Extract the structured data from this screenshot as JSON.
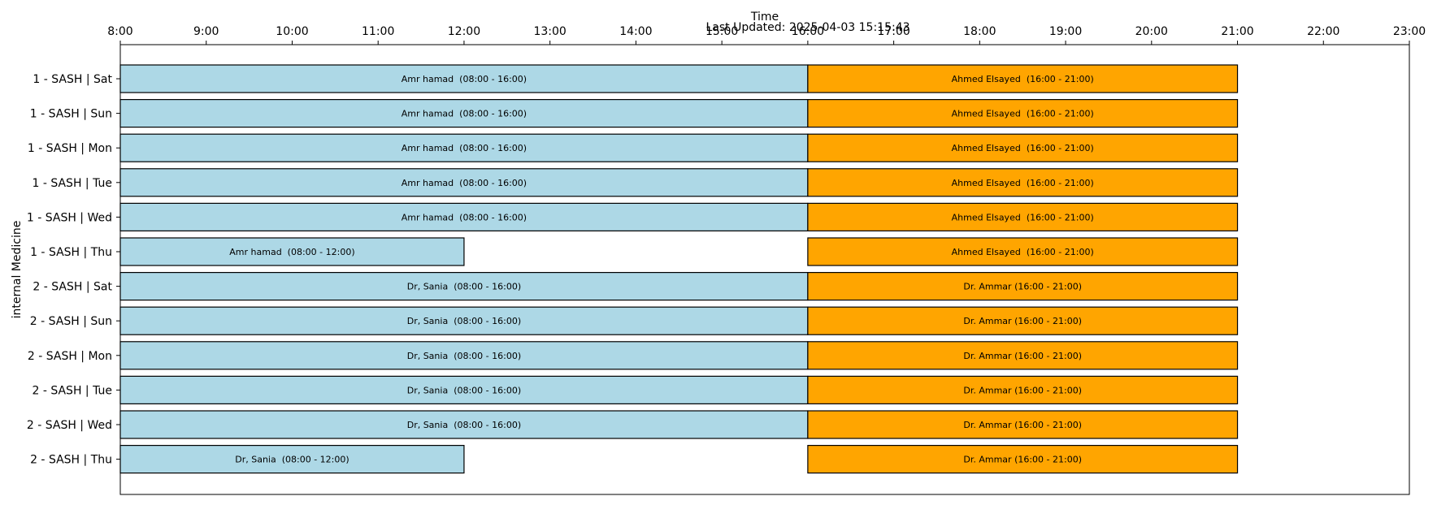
{
  "chart_data": {
    "type": "gantt",
    "title": "",
    "subtitle": "Last Updated: 2025-04-03 15:15:43",
    "xlabel": "Time",
    "ylabel": "internal Medicine",
    "x_axis_position": "top",
    "xlim": [
      8,
      23
    ],
    "x_ticks": [
      8,
      9,
      10,
      11,
      12,
      13,
      14,
      15,
      16,
      17,
      18,
      19,
      20,
      21,
      22,
      23
    ],
    "x_tick_labels": [
      "8:00",
      "9:00",
      "10:00",
      "11:00",
      "12:00",
      "13:00",
      "14:00",
      "15:00",
      "16:00",
      "17:00",
      "18:00",
      "19:00",
      "20:00",
      "21:00",
      "22:00",
      "23:00"
    ],
    "grid": false,
    "colors": {
      "morning": "#add8e6",
      "evening": "#ffa500",
      "edge": "#000000"
    },
    "rows": [
      "1 - SASH | Sat",
      "1 - SASH | Sun",
      "1 - SASH | Mon",
      "1 - SASH | Tue",
      "1 - SASH | Wed",
      "1 - SASH | Thu",
      "2 - SASH | Sat",
      "2 - SASH | Sun",
      "2 - SASH | Mon",
      "2 - SASH | Tue",
      "2 - SASH | Wed",
      "2 - SASH | Thu"
    ],
    "shifts": [
      {
        "row": 0,
        "start": 8,
        "end": 16,
        "kind": "morning",
        "label": "Amr hamad  (08:00 - 16:00)"
      },
      {
        "row": 0,
        "start": 16,
        "end": 21,
        "kind": "evening",
        "label": "Ahmed Elsayed  (16:00 - 21:00)"
      },
      {
        "row": 1,
        "start": 8,
        "end": 16,
        "kind": "morning",
        "label": "Amr hamad  (08:00 - 16:00)"
      },
      {
        "row": 1,
        "start": 16,
        "end": 21,
        "kind": "evening",
        "label": "Ahmed Elsayed  (16:00 - 21:00)"
      },
      {
        "row": 2,
        "start": 8,
        "end": 16,
        "kind": "morning",
        "label": "Amr hamad  (08:00 - 16:00)"
      },
      {
        "row": 2,
        "start": 16,
        "end": 21,
        "kind": "evening",
        "label": "Ahmed Elsayed  (16:00 - 21:00)"
      },
      {
        "row": 3,
        "start": 8,
        "end": 16,
        "kind": "morning",
        "label": "Amr hamad  (08:00 - 16:00)"
      },
      {
        "row": 3,
        "start": 16,
        "end": 21,
        "kind": "evening",
        "label": "Ahmed Elsayed  (16:00 - 21:00)"
      },
      {
        "row": 4,
        "start": 8,
        "end": 16,
        "kind": "morning",
        "label": "Amr hamad  (08:00 - 16:00)"
      },
      {
        "row": 4,
        "start": 16,
        "end": 21,
        "kind": "evening",
        "label": "Ahmed Elsayed  (16:00 - 21:00)"
      },
      {
        "row": 5,
        "start": 8,
        "end": 12,
        "kind": "morning",
        "label": "Amr hamad  (08:00 - 12:00)"
      },
      {
        "row": 5,
        "start": 16,
        "end": 21,
        "kind": "evening",
        "label": "Ahmed Elsayed  (16:00 - 21:00)"
      },
      {
        "row": 6,
        "start": 8,
        "end": 16,
        "kind": "morning",
        "label": "Dr, Sania  (08:00 - 16:00)"
      },
      {
        "row": 6,
        "start": 16,
        "end": 21,
        "kind": "evening",
        "label": "Dr. Ammar (16:00 - 21:00)"
      },
      {
        "row": 7,
        "start": 8,
        "end": 16,
        "kind": "morning",
        "label": "Dr, Sania  (08:00 - 16:00)"
      },
      {
        "row": 7,
        "start": 16,
        "end": 21,
        "kind": "evening",
        "label": "Dr. Ammar (16:00 - 21:00)"
      },
      {
        "row": 8,
        "start": 8,
        "end": 16,
        "kind": "morning",
        "label": "Dr, Sania  (08:00 - 16:00)"
      },
      {
        "row": 8,
        "start": 16,
        "end": 21,
        "kind": "evening",
        "label": "Dr. Ammar (16:00 - 21:00)"
      },
      {
        "row": 9,
        "start": 8,
        "end": 16,
        "kind": "morning",
        "label": "Dr, Sania  (08:00 - 16:00)"
      },
      {
        "row": 9,
        "start": 16,
        "end": 21,
        "kind": "evening",
        "label": "Dr. Ammar (16:00 - 21:00)"
      },
      {
        "row": 10,
        "start": 8,
        "end": 16,
        "kind": "morning",
        "label": "Dr, Sania  (08:00 - 16:00)"
      },
      {
        "row": 10,
        "start": 16,
        "end": 21,
        "kind": "evening",
        "label": "Dr. Ammar (16:00 - 21:00)"
      },
      {
        "row": 11,
        "start": 8,
        "end": 12,
        "kind": "morning",
        "label": "Dr, Sania  (08:00 - 12:00)"
      },
      {
        "row": 11,
        "start": 16,
        "end": 21,
        "kind": "evening",
        "label": "Dr. Ammar (16:00 - 21:00)"
      }
    ]
  }
}
